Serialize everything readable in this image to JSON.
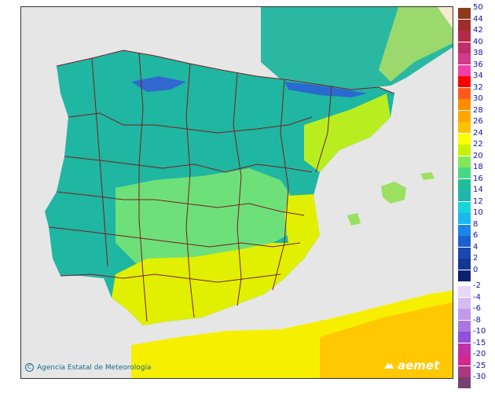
{
  "credit": {
    "text": "Agencia Estatal de Meteorología"
  },
  "logo": {
    "text": "aemet"
  },
  "legend": {
    "warm": [
      {
        "label": "50",
        "color": "#8b3a1a"
      },
      {
        "label": "44",
        "color": "#a02c2c"
      },
      {
        "label": "42",
        "color": "#b22b48"
      },
      {
        "label": "40",
        "color": "#c02e6a"
      },
      {
        "label": "38",
        "color": "#d23a8c"
      },
      {
        "label": "36",
        "color": "#f13fa8"
      },
      {
        "label": "34",
        "color": "#ff0000"
      },
      {
        "label": "32",
        "color": "#ff5a1a"
      },
      {
        "label": "30",
        "color": "#ff8c00"
      },
      {
        "label": "28",
        "color": "#ffa500"
      },
      {
        "label": "26",
        "color": "#ffc200"
      },
      {
        "label": "24",
        "color": "#ffff00"
      },
      {
        "label": "22",
        "color": "#c8f000"
      },
      {
        "label": "20",
        "color": "#82e85a"
      },
      {
        "label": "18",
        "color": "#48d882"
      },
      {
        "label": "16",
        "color": "#1fbf9c"
      },
      {
        "label": "14",
        "color": "#1fb6b0"
      },
      {
        "label": "12",
        "color": "#19d4d8"
      },
      {
        "label": "10",
        "color": "#19b8f0"
      },
      {
        "label": "8",
        "color": "#1c84e8"
      },
      {
        "label": "6",
        "color": "#1a60d0"
      },
      {
        "label": "4",
        "color": "#1848b0"
      },
      {
        "label": "2",
        "color": "#123890"
      },
      {
        "label": "0",
        "color": "#0a2070"
      }
    ],
    "cold": [
      {
        "label": "-2",
        "color": "#e8d8f8"
      },
      {
        "label": "-4",
        "color": "#d6baf2"
      },
      {
        "label": "-6",
        "color": "#c09ae8"
      },
      {
        "label": "-8",
        "color": "#a878e0"
      },
      {
        "label": "-10",
        "color": "#9050d8"
      },
      {
        "label": "-15",
        "color": "#c030a8"
      },
      {
        "label": "-20",
        "color": "#d02890"
      },
      {
        "label": "-25",
        "color": "#a83880"
      },
      {
        "label": "-30",
        "color": "#784070"
      }
    ]
  },
  "colors": {
    "sea": "#e6e6e6",
    "land_outside": "#f6ebd0",
    "border": "#7a1e1e",
    "highland": "#1fb09a",
    "mild": "#5fe07a",
    "warm": "#e8f000",
    "cold": "#2a7ad8"
  }
}
